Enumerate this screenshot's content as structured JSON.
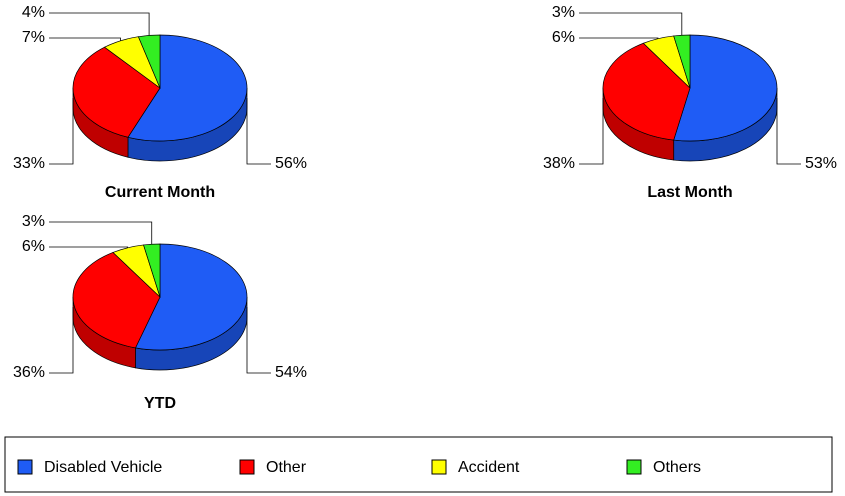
{
  "legend": {
    "categories": [
      "Disabled Vehicle",
      "Other",
      "Accident",
      "Others"
    ],
    "colors": [
      "#1f5cf5",
      "#ff0000",
      "#ffff00",
      "#33ee22"
    ]
  },
  "chart_data": [
    {
      "type": "pie",
      "title": "Current Month",
      "values": [
        56,
        33,
        7,
        4
      ],
      "value_labels": [
        "56%",
        "33%",
        "7%",
        "4%"
      ]
    },
    {
      "type": "pie",
      "title": "Last Month",
      "values": [
        53,
        38,
        6,
        3
      ],
      "value_labels": [
        "53%",
        "38%",
        "6%",
        "3%"
      ]
    },
    {
      "type": "pie",
      "title": "YTD",
      "values": [
        54,
        36,
        6,
        3
      ],
      "value_labels": [
        "54%",
        "36%",
        "6%",
        "3%"
      ]
    }
  ]
}
